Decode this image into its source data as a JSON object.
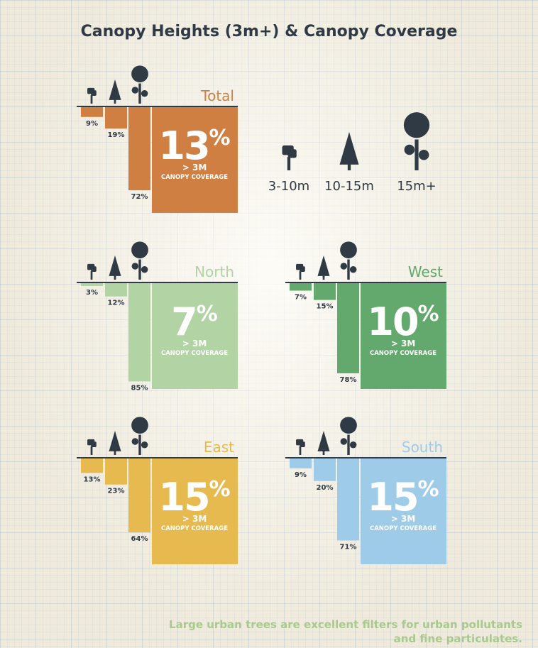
{
  "title": "Canopy Heights (3m+) & Canopy Coverage",
  "legend": [
    {
      "label": "3-10m",
      "icon": "bush-icon"
    },
    {
      "label": "10-15m",
      "icon": "conifer-tree-icon"
    },
    {
      "label": "15m+",
      "icon": "large-tree-icon"
    }
  ],
  "footnote": "Large urban trees are excellent filters for urban pollutants and fine particulates.",
  "coverage_label_line1": "> 3M",
  "coverage_label_line2": "CANOPY COVERAGE",
  "colors": {
    "Total": "#d07f43",
    "North": "#b2d3a3",
    "West": "#63a86c",
    "East": "#e6ba4f",
    "South": "#9ecbe8",
    "ink": "#2f3a44"
  },
  "chart_data": [
    {
      "type": "bar",
      "name": "Total",
      "categories": [
        "3-10m",
        "10-15m",
        "15m+"
      ],
      "values": [
        9,
        19,
        72
      ],
      "coverage": 13
    },
    {
      "type": "bar",
      "name": "North",
      "categories": [
        "3-10m",
        "10-15m",
        "15m+"
      ],
      "values": [
        3,
        12,
        85
      ],
      "coverage": 7
    },
    {
      "type": "bar",
      "name": "West",
      "categories": [
        "3-10m",
        "10-15m",
        "15m+"
      ],
      "values": [
        7,
        15,
        78
      ],
      "coverage": 10
    },
    {
      "type": "bar",
      "name": "East",
      "categories": [
        "3-10m",
        "10-15m",
        "15m+"
      ],
      "values": [
        13,
        23,
        64
      ],
      "coverage": 15
    },
    {
      "type": "bar",
      "name": "South",
      "categories": [
        "3-10m",
        "10-15m",
        "15m+"
      ],
      "values": [
        9,
        20,
        71
      ],
      "coverage": 15
    }
  ]
}
